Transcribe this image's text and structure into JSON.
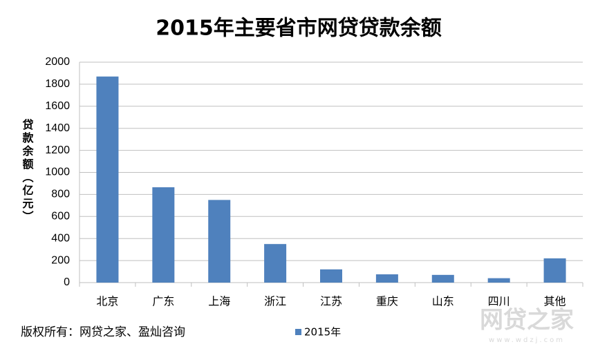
{
  "chart_data": {
    "type": "bar",
    "title": "2015年主要省市网贷贷款余额",
    "y_label": "贷款余额（亿元）",
    "categories": [
      "北京",
      "广东",
      "上海",
      "浙江",
      "江苏",
      "重庆",
      "山东",
      "四川",
      "其他"
    ],
    "series": [
      {
        "name": "2015年",
        "color": "#4f81bd",
        "values": [
          1870,
          865,
          750,
          350,
          120,
          75,
          70,
          40,
          220
        ]
      }
    ],
    "ylim": [
      0,
      2000
    ],
    "yticks": [
      0,
      200,
      400,
      600,
      800,
      1000,
      1200,
      1400,
      1600,
      1800,
      2000
    ],
    "grid": true,
    "legend": "bottom",
    "source": "版权所有：网贷之家、盈灿咨询",
    "watermark": "网贷之家",
    "watermark_url": "www.wdzj.com"
  }
}
